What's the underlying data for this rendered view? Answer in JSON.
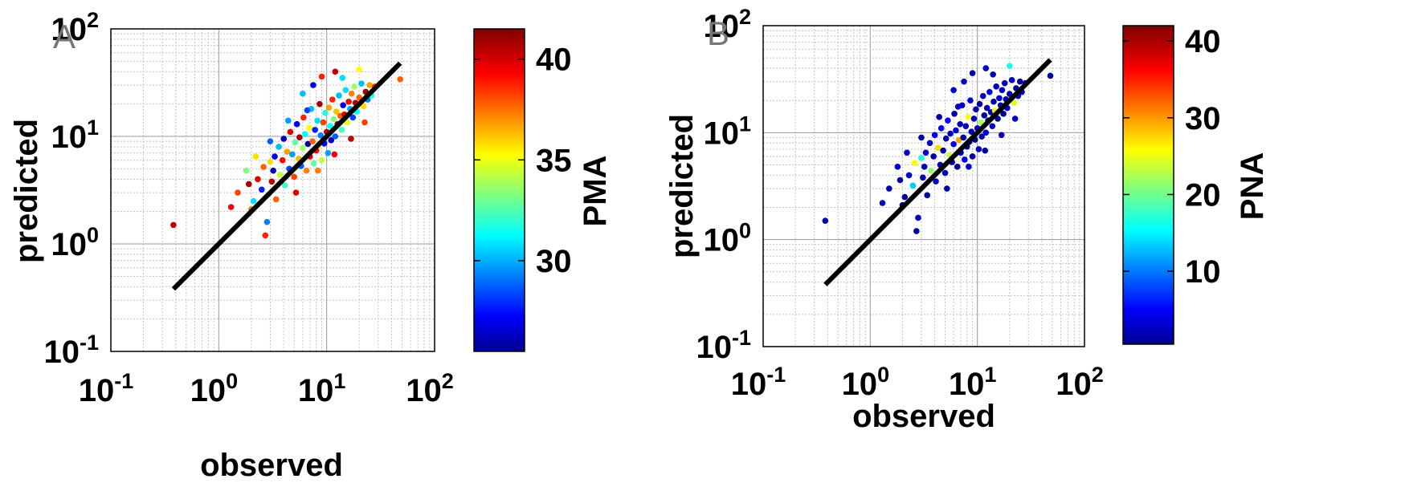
{
  "panels": [
    {
      "label": "A",
      "xlabel": "observed",
      "ylabel": "predicted",
      "colorbar": {
        "label": "PMA",
        "min": 25.5,
        "max": 41.5,
        "ticks": [
          30,
          35,
          40
        ]
      }
    },
    {
      "label": "B",
      "xlabel": "observed",
      "ylabel": "predicted",
      "colorbar": {
        "label": "PNA",
        "min": 0.5,
        "max": 42,
        "ticks": [
          10,
          20,
          30,
          40
        ]
      }
    }
  ],
  "axis_ticks": [
    {
      "base": "10",
      "exp": "-1"
    },
    {
      "base": "10",
      "exp": "0"
    },
    {
      "base": "10",
      "exp": "1"
    },
    {
      "base": "10",
      "exp": "2"
    }
  ],
  "colors": {
    "line": "#000000",
    "grid": "#808080",
    "colormap": "jet"
  },
  "chart_data": [
    {
      "type": "scatter",
      "xlabel": "observed",
      "ylabel": "predicted",
      "xscale": "log",
      "yscale": "log",
      "xlim": [
        0.1,
        100
      ],
      "ylim": [
        0.1,
        100
      ],
      "grid": true,
      "color_variable": "PMA",
      "color_range": [
        25.5,
        41.5
      ],
      "reference_line": {
        "x": [
          0.38,
          48
        ],
        "y": [
          0.38,
          48
        ]
      },
      "points": [
        [
          0.38,
          1.5,
          40.5
        ],
        [
          1.3,
          2.2,
          39.5
        ],
        [
          1.5,
          3.0,
          38.5
        ],
        [
          1.8,
          4.8,
          33.5
        ],
        [
          2.0,
          2.1,
          37.5
        ],
        [
          2.1,
          2.5,
          31.0
        ],
        [
          2.3,
          4.0,
          40.0
        ],
        [
          2.5,
          3.2,
          28.0
        ],
        [
          2.6,
          5.2,
          38.0
        ],
        [
          2.7,
          1.2,
          39.0
        ],
        [
          2.8,
          1.6,
          29.5
        ],
        [
          3.0,
          5.8,
          36.0
        ],
        [
          3.1,
          3.8,
          40.5
        ],
        [
          3.3,
          6.5,
          27.0
        ],
        [
          3.4,
          2.6,
          38.0
        ],
        [
          3.6,
          8.0,
          30.5
        ],
        [
          3.7,
          4.4,
          34.5
        ],
        [
          3.9,
          6.0,
          39.5
        ],
        [
          4.0,
          9.5,
          26.5
        ],
        [
          4.1,
          3.5,
          32.5
        ],
        [
          4.3,
          7.2,
          37.0
        ],
        [
          4.5,
          5.0,
          28.5
        ],
        [
          4.6,
          11.0,
          40.0
        ],
        [
          4.8,
          6.8,
          30.0
        ],
        [
          5.0,
          4.2,
          38.5
        ],
        [
          5.1,
          8.8,
          33.0
        ],
        [
          5.3,
          13.0,
          27.5
        ],
        [
          5.5,
          6.2,
          36.5
        ],
        [
          5.6,
          9.8,
          41.0
        ],
        [
          5.8,
          5.3,
          29.0
        ],
        [
          6.0,
          7.8,
          34.0
        ],
        [
          6.1,
          15.0,
          39.0
        ],
        [
          6.3,
          10.5,
          31.5
        ],
        [
          6.5,
          4.8,
          37.5
        ],
        [
          6.7,
          8.5,
          26.0
        ],
        [
          6.9,
          12.0,
          35.5
        ],
        [
          7.0,
          6.5,
          40.0
        ],
        [
          7.2,
          18.0,
          30.5
        ],
        [
          7.4,
          9.0,
          38.0
        ],
        [
          7.6,
          5.6,
          33.0
        ],
        [
          7.8,
          11.5,
          28.0
        ],
        [
          8.0,
          7.4,
          39.5
        ],
        [
          8.2,
          14.0,
          31.0
        ],
        [
          8.4,
          8.2,
          36.0
        ],
        [
          8.6,
          20.0,
          41.0
        ],
        [
          8.8,
          10.2,
          29.5
        ],
        [
          9.0,
          6.0,
          34.5
        ],
        [
          9.3,
          13.5,
          38.5
        ],
        [
          9.5,
          8.6,
          27.5
        ],
        [
          9.7,
          16.5,
          32.0
        ],
        [
          10.0,
          11.0,
          40.5
        ],
        [
          10.3,
          7.0,
          30.0
        ],
        [
          10.5,
          18.5,
          37.0
        ],
        [
          10.8,
          12.5,
          31.5
        ],
        [
          11.0,
          9.2,
          26.5
        ],
        [
          11.3,
          22.0,
          39.0
        ],
        [
          11.6,
          14.5,
          33.5
        ],
        [
          12.0,
          10.0,
          29.0
        ],
        [
          12.3,
          17.0,
          36.5
        ],
        [
          12.6,
          13.0,
          41.0
        ],
        [
          13.0,
          24.0,
          30.5
        ],
        [
          13.4,
          15.5,
          38.0
        ],
        [
          13.8,
          11.5,
          32.5
        ],
        [
          14.2,
          19.5,
          27.0
        ],
        [
          14.6,
          16.0,
          40.0
        ],
        [
          15.0,
          27.0,
          31.0
        ],
        [
          15.5,
          13.5,
          35.0
        ],
        [
          16.0,
          21.0,
          39.5
        ],
        [
          16.5,
          18.0,
          30.0
        ],
        [
          17.0,
          25.0,
          37.5
        ],
        [
          17.5,
          15.0,
          28.5
        ],
        [
          18.0,
          29.0,
          34.0
        ],
        [
          18.5,
          20.5,
          40.5
        ],
        [
          19.0,
          17.0,
          31.5
        ],
        [
          20.0,
          23.0,
          38.0
        ],
        [
          21.0,
          31.0,
          30.5
        ],
        [
          22.0,
          19.0,
          36.0
        ],
        [
          23.0,
          26.0,
          41.0
        ],
        [
          24.0,
          22.0,
          29.5
        ],
        [
          25.0,
          30.0,
          37.0
        ],
        [
          26.0,
          24.0,
          32.0
        ],
        [
          28.0,
          29.0,
          39.0
        ],
        [
          48.0,
          34.0,
          38.0
        ],
        [
          12.0,
          40.0,
          40.5
        ],
        [
          20.0,
          42.0,
          35.5
        ],
        [
          9.0,
          36.0,
          39.0
        ],
        [
          6.0,
          25.0,
          30.5
        ],
        [
          3.0,
          9.0,
          29.0
        ],
        [
          2.2,
          6.5,
          36.0
        ],
        [
          1.9,
          3.6,
          41.0
        ],
        [
          7.5,
          30.0,
          27.0
        ],
        [
          14.0,
          35.0,
          31.0
        ],
        [
          5.2,
          3.0,
          40.0
        ],
        [
          8.3,
          4.8,
          37.5
        ],
        [
          11.8,
          6.8,
          39.5
        ],
        [
          16.8,
          9.5,
          40.5
        ],
        [
          22.5,
          13.5,
          38.5
        ],
        [
          4.4,
          14.0,
          30.0
        ],
        [
          6.6,
          17.5,
          28.5
        ],
        [
          3.2,
          4.8,
          26.5
        ]
      ]
    },
    {
      "type": "scatter",
      "xlabel": "observed",
      "ylabel": "predicted",
      "xscale": "log",
      "yscale": "log",
      "xlim": [
        0.1,
        100
      ],
      "ylim": [
        0.1,
        100
      ],
      "grid": true,
      "color_variable": "PNA",
      "color_range": [
        0.5,
        42
      ],
      "reference_line": {
        "x": [
          0.38,
          48
        ],
        "y": [
          0.38,
          48
        ]
      },
      "points": [
        [
          0.38,
          1.5,
          2.0
        ],
        [
          1.3,
          2.2,
          3.0
        ],
        [
          1.5,
          3.0,
          2.5
        ],
        [
          1.8,
          4.8,
          4.0
        ],
        [
          2.0,
          2.1,
          1.5
        ],
        [
          2.1,
          2.5,
          2.0
        ],
        [
          2.3,
          4.0,
          3.5
        ],
        [
          2.5,
          3.2,
          14.0
        ],
        [
          2.6,
          5.2,
          26.0
        ],
        [
          2.7,
          1.2,
          2.0
        ],
        [
          2.8,
          1.6,
          3.0
        ],
        [
          3.0,
          5.8,
          17.0
        ],
        [
          3.1,
          3.8,
          2.5
        ],
        [
          3.3,
          6.5,
          4.0
        ],
        [
          3.4,
          2.6,
          1.5
        ],
        [
          3.6,
          8.0,
          3.0
        ],
        [
          3.7,
          4.4,
          22.0
        ],
        [
          3.9,
          6.0,
          2.0
        ],
        [
          4.0,
          9.5,
          5.0
        ],
        [
          4.1,
          3.5,
          3.5
        ],
        [
          4.3,
          7.2,
          28.0
        ],
        [
          4.5,
          5.0,
          2.5
        ],
        [
          4.6,
          11.0,
          4.0
        ],
        [
          4.8,
          6.8,
          1.5
        ],
        [
          5.0,
          4.2,
          3.0
        ],
        [
          5.1,
          8.8,
          2.0
        ],
        [
          5.3,
          13.0,
          6.0
        ],
        [
          5.5,
          6.2,
          24.0
        ],
        [
          5.6,
          9.8,
          3.0
        ],
        [
          5.8,
          5.3,
          2.5
        ],
        [
          6.0,
          7.8,
          4.5
        ],
        [
          6.1,
          15.0,
          2.0
        ],
        [
          6.3,
          10.5,
          3.5
        ],
        [
          6.5,
          4.8,
          1.5
        ],
        [
          6.7,
          8.5,
          30.0
        ],
        [
          6.9,
          12.0,
          2.5
        ],
        [
          7.0,
          6.5,
          4.0
        ],
        [
          7.2,
          18.0,
          3.0
        ],
        [
          7.4,
          9.0,
          2.0
        ],
        [
          7.6,
          5.6,
          5.5
        ],
        [
          7.8,
          11.5,
          3.0
        ],
        [
          8.0,
          7.4,
          1.5
        ],
        [
          8.2,
          14.0,
          26.5
        ],
        [
          8.4,
          8.2,
          2.5
        ],
        [
          8.6,
          20.0,
          4.0
        ],
        [
          8.8,
          10.2,
          3.0
        ],
        [
          9.0,
          6.0,
          2.0
        ],
        [
          9.3,
          13.5,
          3.5
        ],
        [
          9.5,
          8.6,
          1.5
        ],
        [
          9.7,
          16.5,
          2.5
        ],
        [
          10.0,
          11.0,
          4.5
        ],
        [
          10.3,
          7.0,
          3.0
        ],
        [
          10.5,
          18.5,
          2.0
        ],
        [
          10.8,
          12.5,
          23.0
        ],
        [
          11.0,
          9.2,
          2.5
        ],
        [
          11.3,
          22.0,
          3.5
        ],
        [
          11.6,
          14.5,
          1.5
        ],
        [
          12.0,
          10.0,
          4.0
        ],
        [
          12.3,
          17.0,
          3.0
        ],
        [
          12.6,
          13.0,
          2.0
        ],
        [
          13.0,
          24.0,
          5.0
        ],
        [
          13.4,
          15.5,
          2.5
        ],
        [
          13.8,
          11.5,
          3.5
        ],
        [
          14.2,
          19.5,
          1.5
        ],
        [
          14.6,
          16.0,
          27.0
        ],
        [
          15.0,
          27.0,
          3.0
        ],
        [
          15.5,
          13.5,
          2.0
        ],
        [
          16.0,
          21.0,
          4.0
        ],
        [
          16.5,
          18.0,
          2.5
        ],
        [
          17.0,
          25.0,
          3.5
        ],
        [
          17.5,
          15.0,
          1.5
        ],
        [
          18.0,
          29.0,
          3.0
        ],
        [
          18.5,
          20.5,
          2.0
        ],
        [
          19.0,
          17.0,
          4.5
        ],
        [
          20.0,
          23.0,
          2.5
        ],
        [
          21.0,
          31.0,
          3.0
        ],
        [
          22.0,
          19.0,
          25.0
        ],
        [
          23.0,
          26.0,
          2.0
        ],
        [
          24.0,
          22.0,
          3.5
        ],
        [
          25.0,
          30.0,
          1.5
        ],
        [
          26.0,
          24.0,
          2.5
        ],
        [
          28.0,
          29.0,
          3.0
        ],
        [
          48.0,
          34.0,
          2.0
        ],
        [
          12.0,
          40.0,
          3.5
        ],
        [
          20.0,
          42.0,
          17.0
        ],
        [
          9.0,
          36.0,
          2.5
        ],
        [
          6.0,
          25.0,
          4.0
        ],
        [
          3.0,
          9.0,
          2.0
        ],
        [
          2.2,
          6.5,
          3.0
        ],
        [
          1.9,
          3.6,
          1.5
        ],
        [
          7.5,
          30.0,
          2.5
        ],
        [
          14.0,
          35.0,
          3.0
        ],
        [
          5.2,
          3.0,
          2.0
        ],
        [
          8.3,
          4.8,
          3.5
        ],
        [
          11.8,
          6.8,
          1.5
        ],
        [
          16.8,
          9.5,
          2.5
        ],
        [
          22.5,
          13.5,
          3.0
        ],
        [
          4.4,
          14.0,
          2.0
        ],
        [
          6.6,
          17.5,
          4.0
        ],
        [
          3.2,
          4.8,
          2.5
        ]
      ]
    }
  ]
}
